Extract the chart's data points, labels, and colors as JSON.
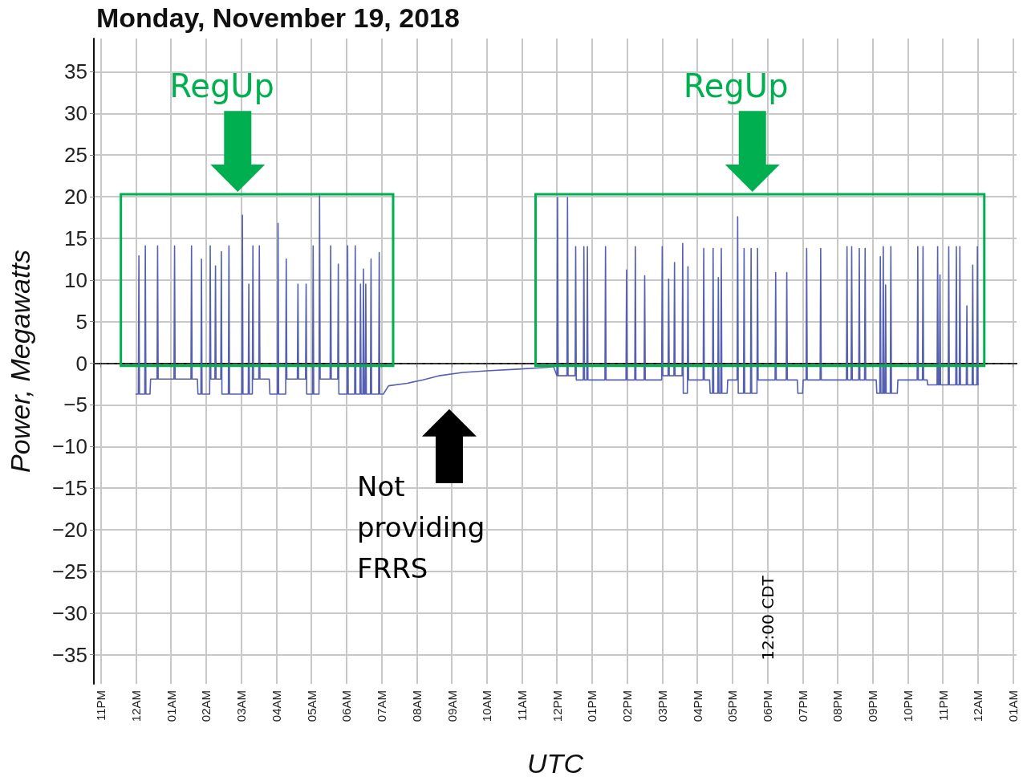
{
  "chart_data": {
    "type": "line",
    "title": "Monday, November 19, 2018",
    "xlabel": "UTC",
    "ylabel": "Power, Megawatts",
    "xlim": [
      "2018-11-18T22:48",
      "2018-11-20T01:06"
    ],
    "xticks": [
      {
        "value": "2018-11-18T23:00",
        "label": "11PM"
      },
      {
        "value": "2018-11-19T00:00",
        "label": "12AM"
      },
      {
        "value": "2018-11-19T01:00",
        "label": "01AM"
      },
      {
        "value": "2018-11-19T02:00",
        "label": "02AM"
      },
      {
        "value": "2018-11-19T03:00",
        "label": "03AM"
      },
      {
        "value": "2018-11-19T04:00",
        "label": "04AM"
      },
      {
        "value": "2018-11-19T05:00",
        "label": "05AM"
      },
      {
        "value": "2018-11-19T06:00",
        "label": "06AM"
      },
      {
        "value": "2018-11-19T07:00",
        "label": "07AM"
      },
      {
        "value": "2018-11-19T08:00",
        "label": "08AM"
      },
      {
        "value": "2018-11-19T09:00",
        "label": "09AM"
      },
      {
        "value": "2018-11-19T10:00",
        "label": "10AM"
      },
      {
        "value": "2018-11-19T11:00",
        "label": "11AM"
      },
      {
        "value": "2018-11-19T12:00",
        "label": "12PM"
      },
      {
        "value": "2018-11-19T13:00",
        "label": "01PM"
      },
      {
        "value": "2018-11-19T14:00",
        "label": "02PM"
      },
      {
        "value": "2018-11-19T15:00",
        "label": "03PM"
      },
      {
        "value": "2018-11-19T16:00",
        "label": "04PM"
      },
      {
        "value": "2018-11-19T17:00",
        "label": "05PM"
      },
      {
        "value": "2018-11-19T18:00",
        "label": "06PM"
      },
      {
        "value": "2018-11-19T19:00",
        "label": "07PM"
      },
      {
        "value": "2018-11-19T20:00",
        "label": "08PM"
      },
      {
        "value": "2018-11-19T21:00",
        "label": "09PM"
      },
      {
        "value": "2018-11-19T22:00",
        "label": "10PM"
      },
      {
        "value": "2018-11-19T23:00",
        "label": "11PM"
      },
      {
        "value": "2018-11-20T00:00",
        "label": "12AM"
      },
      {
        "value": "2018-11-20T01:00",
        "label": "01AM"
      }
    ],
    "ylim": [
      -38.5,
      39
    ],
    "yticks": [
      -35,
      -30,
      -25,
      -20,
      -15,
      -10,
      -5,
      0,
      5,
      10,
      15,
      20,
      25,
      30,
      35
    ],
    "grid": true,
    "marker": "none",
    "line_style": "solid",
    "ref_lines": [
      {
        "axis": "y",
        "value": 0,
        "color": "#404040",
        "line_style": "dashed"
      }
    ],
    "annotations": [
      "RegUp",
      "RegUp",
      "Not providing FRRS",
      "12:00 CDT"
    ],
    "series": [
      {
        "color": "#5561b0",
        "x": [
          "2018-11-19T00:00",
          "2018-11-19T00:04",
          "2018-11-19T00:05",
          "2018-11-19T00:06",
          "2018-11-19T00:15",
          "2018-11-19T00:16",
          "2018-11-19T00:17",
          "2018-11-19T00:24",
          "2018-11-19T00:25",
          "2018-11-19T00:36",
          "2018-11-19T00:37",
          "2018-11-19T00:38",
          "2018-11-19T01:05",
          "2018-11-19T01:06",
          "2018-11-19T01:07",
          "2018-11-19T01:34",
          "2018-11-19T01:35",
          "2018-11-19T01:36",
          "2018-11-19T01:45",
          "2018-11-19T01:46",
          "2018-11-19T01:51",
          "2018-11-19T01:52",
          "2018-11-19T01:53",
          "2018-11-19T02:06",
          "2018-11-19T02:07",
          "2018-11-19T02:08",
          "2018-11-19T02:15",
          "2018-11-19T02:16",
          "2018-11-19T02:17",
          "2018-11-19T02:25",
          "2018-11-19T02:26",
          "2018-11-19T02:27",
          "2018-11-19T02:38",
          "2018-11-19T02:39",
          "2018-11-19T02:40",
          "2018-11-19T03:01",
          "2018-11-19T03:02",
          "2018-11-19T03:03",
          "2018-11-19T03:12",
          "2018-11-19T03:13",
          "2018-11-19T03:14",
          "2018-11-19T03:19",
          "2018-11-19T03:20",
          "2018-11-19T03:21",
          "2018-11-19T03:30",
          "2018-11-19T03:31",
          "2018-11-19T03:32",
          "2018-11-19T03:48",
          "2018-11-19T03:49",
          "2018-11-19T04:02",
          "2018-11-19T04:03",
          "2018-11-19T04:04",
          "2018-11-19T04:16",
          "2018-11-19T04:17",
          "2018-11-19T04:18",
          "2018-11-19T04:36",
          "2018-11-19T04:37",
          "2018-11-19T04:38",
          "2018-11-19T04:50",
          "2018-11-19T04:51",
          "2018-11-19T04:52",
          "2018-11-19T05:02",
          "2018-11-19T05:03",
          "2018-11-19T05:04",
          "2018-11-19T05:13",
          "2018-11-19T05:14",
          "2018-11-19T05:15",
          "2018-11-19T05:32",
          "2018-11-19T05:33",
          "2018-11-19T05:34",
          "2018-11-19T05:45",
          "2018-11-19T05:46",
          "2018-11-19T05:47",
          "2018-11-19T06:01",
          "2018-11-19T06:02",
          "2018-11-19T06:03",
          "2018-11-19T06:14",
          "2018-11-19T06:15",
          "2018-11-19T06:16",
          "2018-11-19T06:23",
          "2018-11-19T06:24",
          "2018-11-19T06:25",
          "2018-11-19T06:28",
          "2018-11-19T06:29",
          "2018-11-19T06:30",
          "2018-11-19T06:32",
          "2018-11-19T06:33",
          "2018-11-19T06:34",
          "2018-11-19T06:41",
          "2018-11-19T06:42",
          "2018-11-19T06:43",
          "2018-11-19T06:55",
          "2018-11-19T06:56",
          "2018-11-19T06:57",
          "2018-11-19T07:03",
          "2018-11-19T07:12",
          "2018-11-19T07:44",
          "2018-11-19T08:11",
          "2018-11-19T08:38",
          "2018-11-19T09:19",
          "2018-11-19T10:00",
          "2018-11-19T10:54",
          "2018-11-19T11:42",
          "2018-11-19T11:54",
          "2018-11-19T12:00",
          "2018-11-19T12:01",
          "2018-11-19T12:02",
          "2018-11-19T12:17",
          "2018-11-19T12:18",
          "2018-11-19T12:19",
          "2018-11-19T12:31",
          "2018-11-19T12:32",
          "2018-11-19T12:33",
          "2018-11-19T12:45",
          "2018-11-19T12:46",
          "2018-11-19T12:47",
          "2018-11-19T12:51",
          "2018-11-19T12:52",
          "2018-11-19T12:53",
          "2018-11-19T13:22",
          "2018-11-19T13:23",
          "2018-11-19T13:24",
          "2018-11-19T13:58",
          "2018-11-19T13:59",
          "2018-11-19T14:00",
          "2018-11-19T14:13",
          "2018-11-19T14:14",
          "2018-11-19T14:15",
          "2018-11-19T14:29",
          "2018-11-19T14:30",
          "2018-11-19T14:31",
          "2018-11-19T14:59",
          "2018-11-19T15:00",
          "2018-11-19T15:01",
          "2018-11-19T15:10",
          "2018-11-19T15:11",
          "2018-11-19T15:12",
          "2018-11-19T15:20",
          "2018-11-19T15:21",
          "2018-11-19T15:22",
          "2018-11-19T15:34",
          "2018-11-19T15:35",
          "2018-11-19T15:36",
          "2018-11-19T15:43",
          "2018-11-19T15:44",
          "2018-11-19T15:45",
          "2018-11-19T16:10",
          "2018-11-19T16:11",
          "2018-11-19T16:12",
          "2018-11-19T16:21",
          "2018-11-19T16:22",
          "2018-11-19T16:26",
          "2018-11-19T16:27",
          "2018-11-19T16:28",
          "2018-11-19T16:35",
          "2018-11-19T16:36",
          "2018-11-19T16:37",
          "2018-11-19T16:40",
          "2018-11-19T16:41",
          "2018-11-19T16:42",
          "2018-11-19T16:51",
          "2018-11-19T16:52",
          "2018-11-19T17:08",
          "2018-11-19T17:09",
          "2018-11-19T17:10",
          "2018-11-19T17:19",
          "2018-11-19T17:20",
          "2018-11-19T17:21",
          "2018-11-19T17:31",
          "2018-11-19T17:32",
          "2018-11-19T17:33",
          "2018-11-19T17:42",
          "2018-11-19T17:43",
          "2018-11-19T17:44",
          "2018-11-19T18:13",
          "2018-11-19T18:14",
          "2018-11-19T18:15",
          "2018-11-19T18:32",
          "2018-11-19T18:33",
          "2018-11-19T18:34",
          "2018-11-19T18:51",
          "2018-11-19T18:52",
          "2018-11-19T19:00",
          "2018-11-19T19:01",
          "2018-11-19T19:06",
          "2018-11-19T19:07",
          "2018-11-19T19:08",
          "2018-11-19T19:30",
          "2018-11-19T19:31",
          "2018-11-19T19:32",
          "2018-11-19T20:15",
          "2018-11-19T20:16",
          "2018-11-19T20:17",
          "2018-11-19T20:23",
          "2018-11-19T20:24",
          "2018-11-19T20:25",
          "2018-11-19T20:36",
          "2018-11-19T20:37",
          "2018-11-19T20:38",
          "2018-11-19T20:46",
          "2018-11-19T20:47",
          "2018-11-19T20:48",
          "2018-11-19T21:06",
          "2018-11-19T21:07",
          "2018-11-19T21:12",
          "2018-11-19T21:13",
          "2018-11-19T21:14",
          "2018-11-19T21:17",
          "2018-11-19T21:18",
          "2018-11-19T21:19",
          "2018-11-19T21:21",
          "2018-11-19T21:22",
          "2018-11-19T21:23",
          "2018-11-19T21:30",
          "2018-11-19T21:31",
          "2018-11-19T21:32",
          "2018-11-19T21:42",
          "2018-11-19T21:43",
          "2018-11-19T22:16",
          "2018-11-19T22:17",
          "2018-11-19T22:18",
          "2018-11-19T22:25",
          "2018-11-19T22:26",
          "2018-11-19T22:27",
          "2018-11-19T22:33",
          "2018-11-19T22:34",
          "2018-11-19T22:50",
          "2018-11-19T22:51",
          "2018-11-19T22:52",
          "2018-11-19T22:54",
          "2018-11-19T22:55",
          "2018-11-19T22:56",
          "2018-11-19T23:09",
          "2018-11-19T23:10",
          "2018-11-19T23:11",
          "2018-11-19T23:22",
          "2018-11-19T23:23",
          "2018-11-19T23:24",
          "2018-11-19T23:28",
          "2018-11-19T23:29",
          "2018-11-19T23:30",
          "2018-11-19T23:40",
          "2018-11-19T23:41",
          "2018-11-19T23:42",
          "2018-11-19T23:50",
          "2018-11-19T23:51",
          "2018-11-19T23:52",
          "2018-11-19T23:58",
          "2018-11-19T23:59",
          "2018-11-20T00:00"
        ],
        "values": [
          -3.7,
          -3.7,
          12.9,
          -3.7,
          -3.7,
          14.1,
          -3.7,
          -3.7,
          -1.9,
          -1.9,
          14.1,
          -1.9,
          -1.9,
          14.1,
          -1.9,
          -1.9,
          14.1,
          -1.9,
          -1.9,
          -3.7,
          -3.7,
          12.5,
          -3.7,
          -3.7,
          14.1,
          -1.9,
          -1.9,
          11.7,
          -1.9,
          -1.9,
          13.4,
          -3.7,
          -3.7,
          14.1,
          -3.7,
          -3.7,
          17.8,
          -3.7,
          -3.7,
          9.5,
          -3.7,
          -3.7,
          14.1,
          -1.9,
          -1.9,
          14.1,
          -1.9,
          -1.9,
          -3.7,
          -3.7,
          16.8,
          -3.7,
          -3.7,
          12.5,
          -1.9,
          -1.9,
          9.5,
          -1.9,
          -1.9,
          9.5,
          -3.7,
          -3.7,
          14.1,
          -3.7,
          -3.7,
          20.1,
          -1.9,
          -1.9,
          14.1,
          -1.9,
          -1.9,
          11.9,
          -3.7,
          -3.7,
          14.1,
          -3.7,
          -3.7,
          14.1,
          -3.7,
          -3.7,
          9.5,
          -3.7,
          -3.7,
          11.3,
          -3.7,
          -3.7,
          9.5,
          -3.7,
          -3.7,
          12.5,
          -3.7,
          -3.7,
          13.3,
          -3.7,
          -3.7,
          -2.7,
          -2.4,
          -2.0,
          -1.5,
          -1.1,
          -0.9,
          -0.7,
          -0.5,
          -0.4,
          -1.5,
          19.9,
          -1.5,
          -1.5,
          19.9,
          -1.5,
          -1.5,
          14.0,
          -2.0,
          -2.0,
          14.0,
          -2.0,
          -2.0,
          14.0,
          -2.0,
          -2.0,
          14.0,
          -2.0,
          -2.0,
          11.2,
          -2.0,
          -2.0,
          14.0,
          -2.0,
          -2.0,
          10.5,
          -2.0,
          -2.0,
          14.0,
          -1.5,
          -1.5,
          10.1,
          -1.5,
          -1.5,
          12.1,
          -1.5,
          -1.5,
          14.4,
          -3.6,
          -3.6,
          11.6,
          -2.0,
          -2.0,
          13.8,
          -2.0,
          -2.0,
          -3.6,
          -3.6,
          13.8,
          -3.6,
          -3.6,
          10.3,
          -3.6,
          -3.6,
          13.8,
          -3.6,
          -3.6,
          -2.0,
          -2.0,
          17.6,
          -3.6,
          -3.6,
          13.8,
          -3.6,
          -3.6,
          13.8,
          -3.6,
          -3.6,
          13.8,
          -2.0,
          -2.0,
          10.9,
          -2.0,
          -2.0,
          10.9,
          -2.0,
          -2.0,
          -3.6,
          -3.6,
          -2.0,
          -2.0,
          13.8,
          -2.0,
          -2.0,
          13.8,
          -2.0,
          -2.0,
          14.0,
          -2.0,
          -2.0,
          14.0,
          -2.0,
          -2.0,
          13.8,
          -2.0,
          -2.0,
          13.8,
          -2.0,
          -2.0,
          -3.6,
          -3.6,
          12.8,
          -3.6,
          -3.6,
          14.0,
          -3.6,
          -3.6,
          9.4,
          -3.6,
          -3.6,
          14.0,
          -3.6,
          -3.6,
          -2.0,
          -2.0,
          14.0,
          -2.0,
          -2.0,
          14.0,
          -2.0,
          -2.0,
          -2.6,
          -2.6,
          14.0,
          -2.6,
          -2.6,
          10.6,
          -2.6,
          -2.6,
          14.0,
          -2.6,
          -2.6,
          14.0,
          -2.6,
          -2.6,
          14.0,
          -2.6,
          -2.6,
          6.9,
          -2.6,
          -2.6,
          11.8,
          -2.6,
          -2.6,
          14.0,
          -2.6
        ]
      }
    ]
  }
}
